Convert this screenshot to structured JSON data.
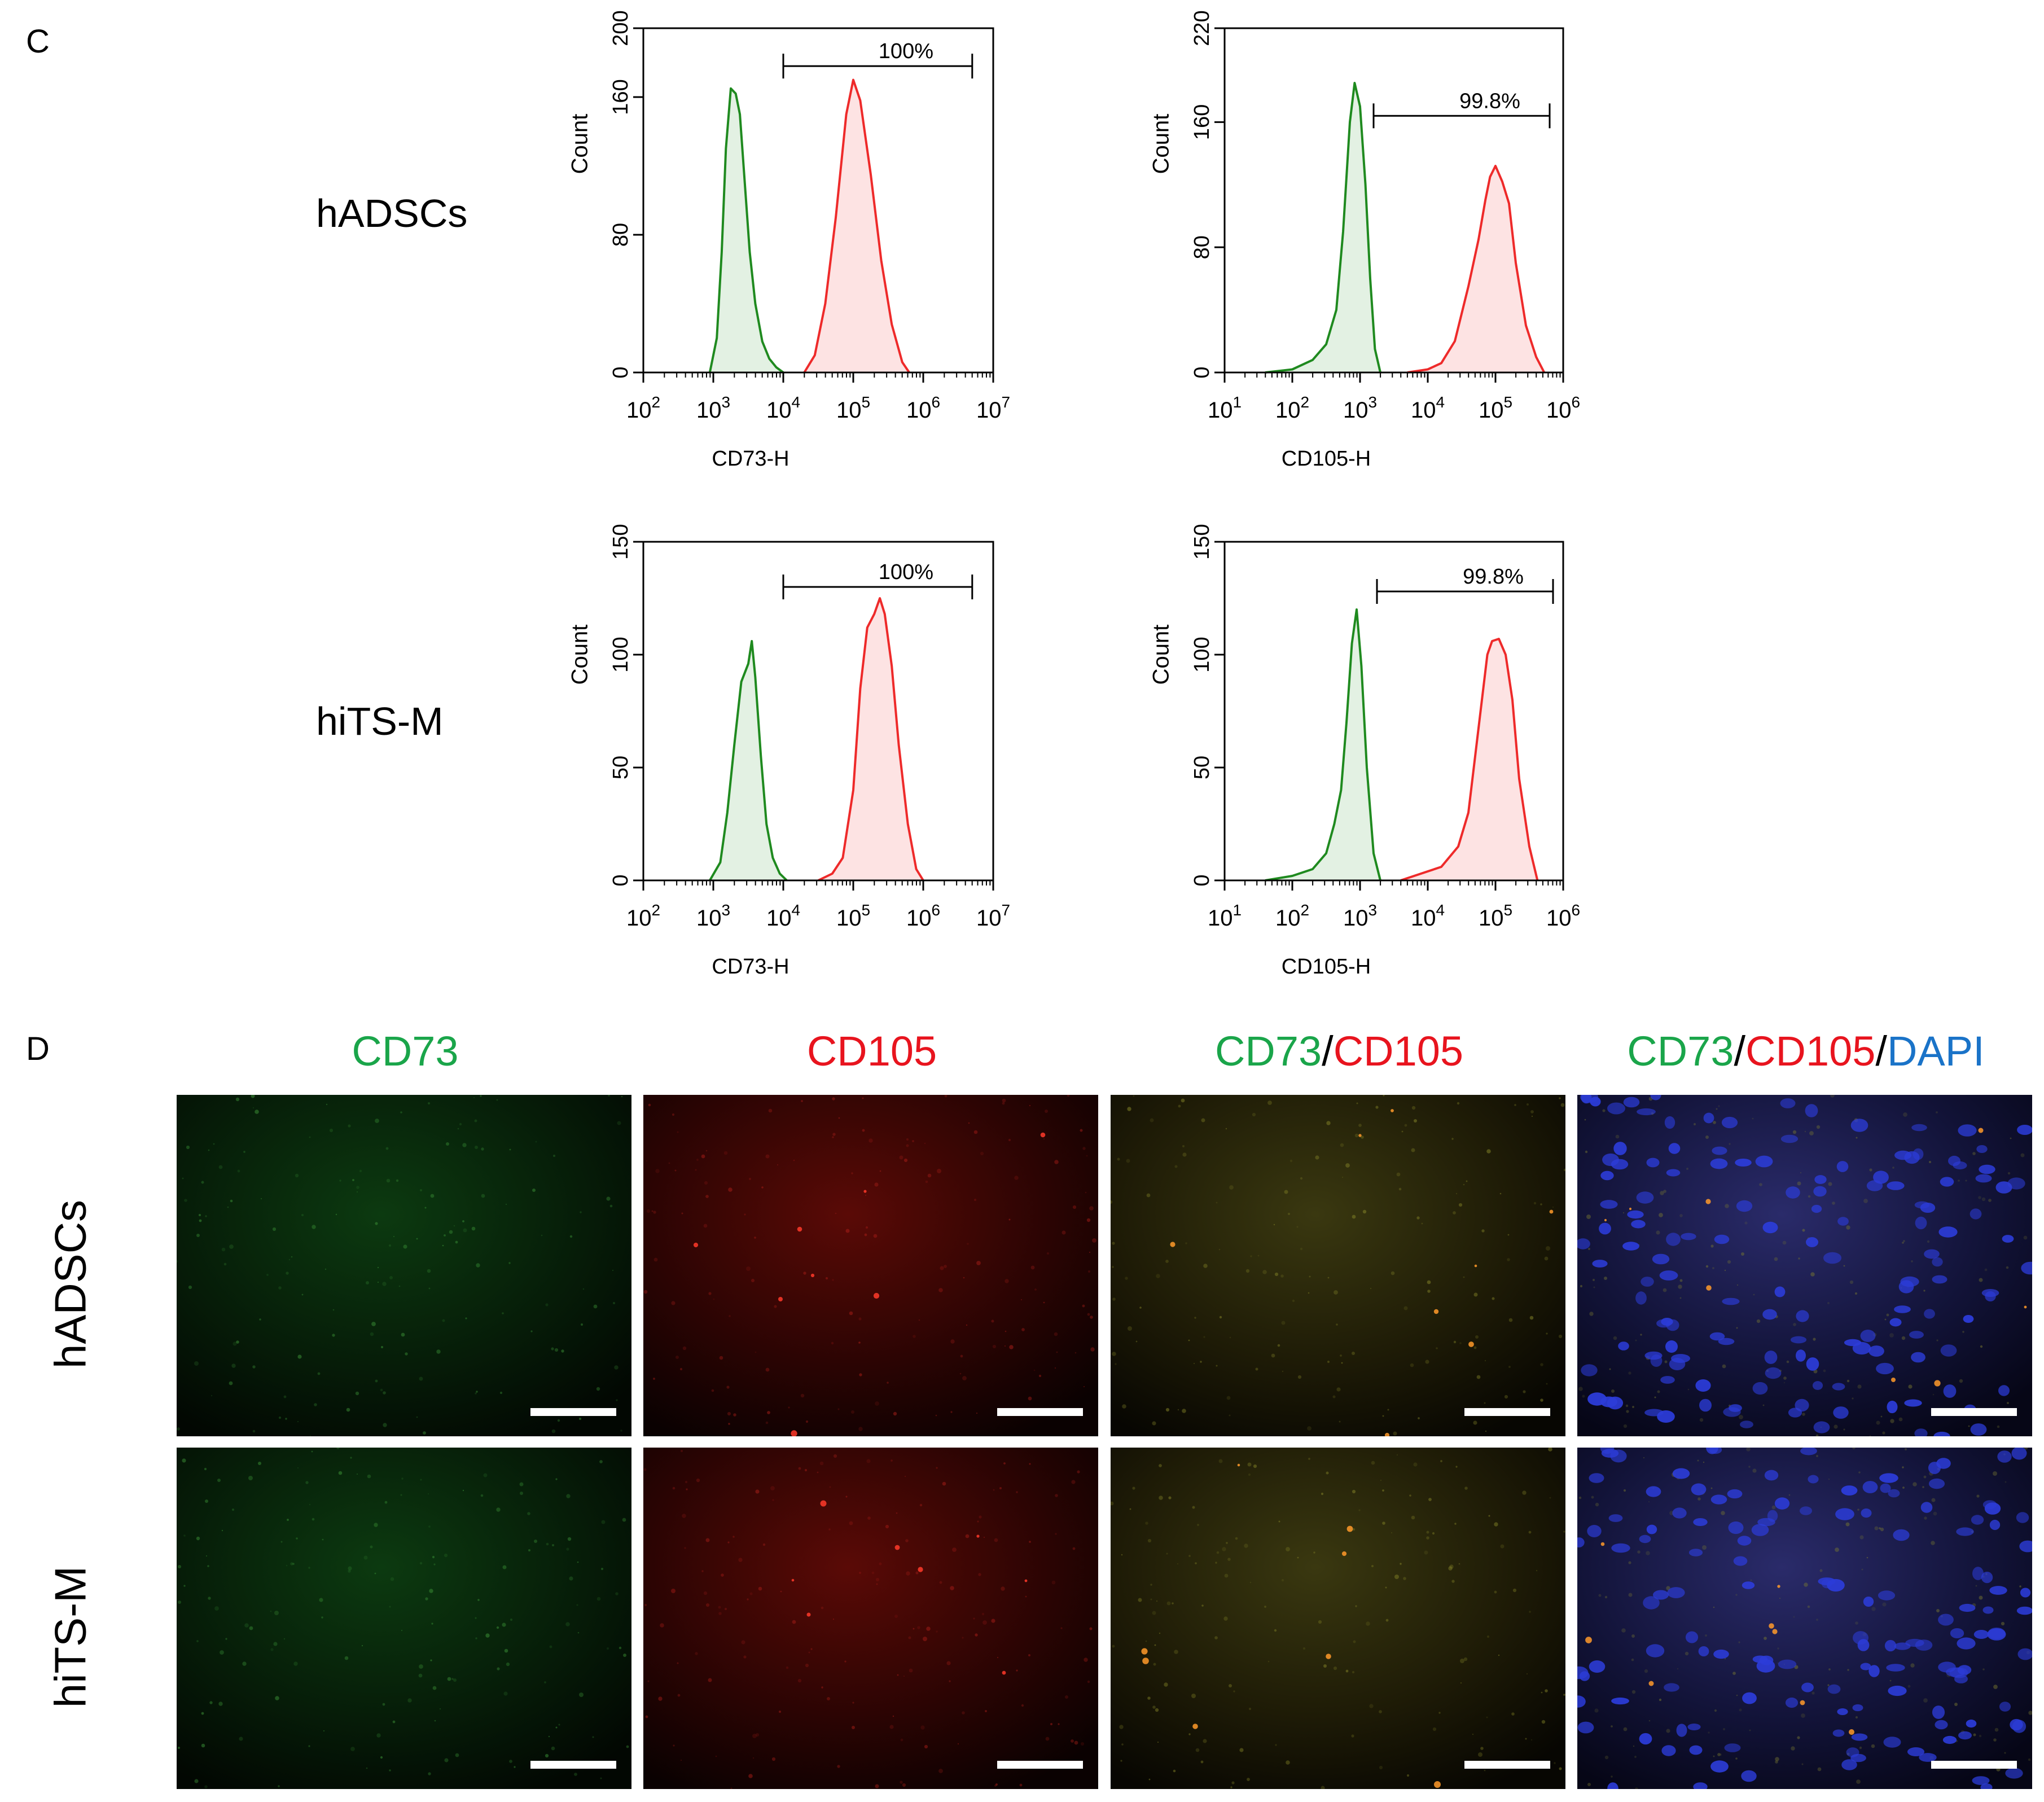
{
  "panel_c_label": "C",
  "panel_d_label": "D",
  "row_labels": [
    "hADSCs",
    "hiTS-M"
  ],
  "count_label": "Count",
  "colors": {
    "control_line": "#1f8a1f",
    "control_fill": "#e3f1e3",
    "marker_line": "#ee2a2a",
    "marker_fill": "#fde3e3",
    "cd73_text": "#1aa54a",
    "cd105_text": "#e8141e",
    "dapi_text": "#1a73c8"
  },
  "micro_titles": [
    [
      {
        "t": "CD73",
        "c": "cd73_text"
      }
    ],
    [
      {
        "t": "CD105",
        "c": "cd105_text"
      }
    ],
    [
      {
        "t": "CD73",
        "c": "cd73_text"
      },
      {
        "t": "/",
        "c": "black"
      },
      {
        "t": "CD105",
        "c": "cd105_text"
      }
    ],
    [
      {
        "t": "CD73",
        "c": "cd73_text"
      },
      {
        "t": "/",
        "c": "black"
      },
      {
        "t": "CD105",
        "c": "cd105_text"
      },
      {
        "t": "/",
        "c": "black"
      },
      {
        "t": "DAPI",
        "c": "dapi_text"
      }
    ]
  ],
  "micro_channels": [
    "green",
    "red",
    "merge",
    "merge_dapi"
  ],
  "chart_data": [
    {
      "type": "area",
      "row": "hADSCs",
      "xlabel": "CD73-H",
      "ylabel": "Count",
      "xscale": "log",
      "xlim_exp": [
        2,
        7
      ],
      "xticks_exp": [
        2,
        3,
        4,
        5,
        6,
        7
      ],
      "ylim": [
        0,
        200
      ],
      "yticks": [
        0,
        80,
        160,
        200
      ],
      "gate": {
        "label": "100%",
        "from_exp": 4.0,
        "to_exp": 6.7,
        "y": 178
      },
      "series": [
        {
          "role": "control",
          "x_exp": [
            2.95,
            3.05,
            3.12,
            3.18,
            3.25,
            3.32,
            3.38,
            3.45,
            3.52,
            3.6,
            3.7,
            3.8,
            3.9,
            4.0
          ],
          "y": [
            0,
            20,
            70,
            130,
            165,
            162,
            150,
            110,
            70,
            40,
            18,
            8,
            3,
            0
          ]
        },
        {
          "role": "marker",
          "x_exp": [
            4.3,
            4.45,
            4.6,
            4.75,
            4.9,
            5.0,
            5.1,
            5.25,
            5.4,
            5.55,
            5.7,
            5.8
          ],
          "y": [
            0,
            10,
            40,
            90,
            150,
            170,
            158,
            115,
            65,
            28,
            6,
            0
          ]
        }
      ]
    },
    {
      "type": "area",
      "row": "hADSCs",
      "xlabel": "CD105-H",
      "ylabel": "Count",
      "xscale": "log",
      "xlim_exp": [
        1,
        6
      ],
      "xticks_exp": [
        1,
        2,
        3,
        4,
        5,
        6
      ],
      "ylim": [
        0,
        220
      ],
      "yticks": [
        0,
        80,
        160,
        220
      ],
      "gate": {
        "label": "99.8%",
        "from_exp": 3.2,
        "to_exp": 5.8,
        "y": 164
      },
      "series": [
        {
          "role": "control",
          "x_exp": [
            1.6,
            2.0,
            2.3,
            2.5,
            2.65,
            2.75,
            2.85,
            2.92,
            3.0,
            3.08,
            3.15,
            3.22,
            3.3
          ],
          "y": [
            0,
            2,
            8,
            18,
            40,
            90,
            160,
            185,
            170,
            120,
            60,
            15,
            0
          ]
        },
        {
          "role": "marker",
          "x_exp": [
            3.7,
            4.0,
            4.2,
            4.4,
            4.6,
            4.75,
            4.85,
            4.92,
            5.0,
            5.1,
            5.2,
            5.3,
            5.45,
            5.6,
            5.72
          ],
          "y": [
            0,
            2,
            6,
            20,
            55,
            85,
            110,
            125,
            132,
            122,
            108,
            70,
            30,
            10,
            0
          ]
        }
      ]
    },
    {
      "type": "area",
      "row": "hiTS-M",
      "xlabel": "CD73-H",
      "ylabel": "Count",
      "xscale": "log",
      "xlim_exp": [
        2,
        7
      ],
      "xticks_exp": [
        2,
        3,
        4,
        5,
        6,
        7
      ],
      "ylim": [
        0,
        150
      ],
      "yticks": [
        0,
        50,
        100,
        150
      ],
      "gate": {
        "label": "100%",
        "from_exp": 4.0,
        "to_exp": 6.7,
        "y": 130
      },
      "series": [
        {
          "role": "control",
          "x_exp": [
            2.95,
            3.1,
            3.2,
            3.3,
            3.4,
            3.5,
            3.55,
            3.6,
            3.68,
            3.76,
            3.85,
            3.95,
            4.05
          ],
          "y": [
            0,
            8,
            30,
            60,
            88,
            96,
            106,
            90,
            55,
            25,
            10,
            3,
            0
          ]
        },
        {
          "role": "marker",
          "x_exp": [
            4.5,
            4.7,
            4.85,
            5.0,
            5.1,
            5.2,
            5.3,
            5.38,
            5.45,
            5.55,
            5.65,
            5.78,
            5.9,
            6.0
          ],
          "y": [
            0,
            3,
            10,
            40,
            85,
            112,
            118,
            125,
            118,
            95,
            60,
            25,
            5,
            0
          ]
        }
      ]
    },
    {
      "type": "area",
      "row": "hiTS-M",
      "xlabel": "CD105-H",
      "ylabel": "Count",
      "xscale": "log",
      "xlim_exp": [
        1,
        6
      ],
      "xticks_exp": [
        1,
        2,
        3,
        4,
        5,
        6
      ],
      "ylim": [
        0,
        150
      ],
      "yticks": [
        0,
        50,
        100,
        150
      ],
      "gate": {
        "label": "99.8%",
        "from_exp": 3.25,
        "to_exp": 5.85,
        "y": 128
      },
      "series": [
        {
          "role": "control",
          "x_exp": [
            1.6,
            2.0,
            2.3,
            2.5,
            2.62,
            2.72,
            2.8,
            2.88,
            2.95,
            3.02,
            3.1,
            3.2,
            3.3
          ],
          "y": [
            0,
            2,
            5,
            12,
            25,
            40,
            70,
            105,
            120,
            95,
            50,
            12,
            0
          ]
        },
        {
          "role": "marker",
          "x_exp": [
            3.6,
            3.9,
            4.2,
            4.45,
            4.6,
            4.7,
            4.8,
            4.88,
            4.95,
            5.05,
            5.15,
            5.25,
            5.35,
            5.5,
            5.62
          ],
          "y": [
            0,
            3,
            6,
            15,
            30,
            55,
            80,
            100,
            106,
            107,
            100,
            80,
            45,
            15,
            0
          ]
        }
      ]
    }
  ]
}
